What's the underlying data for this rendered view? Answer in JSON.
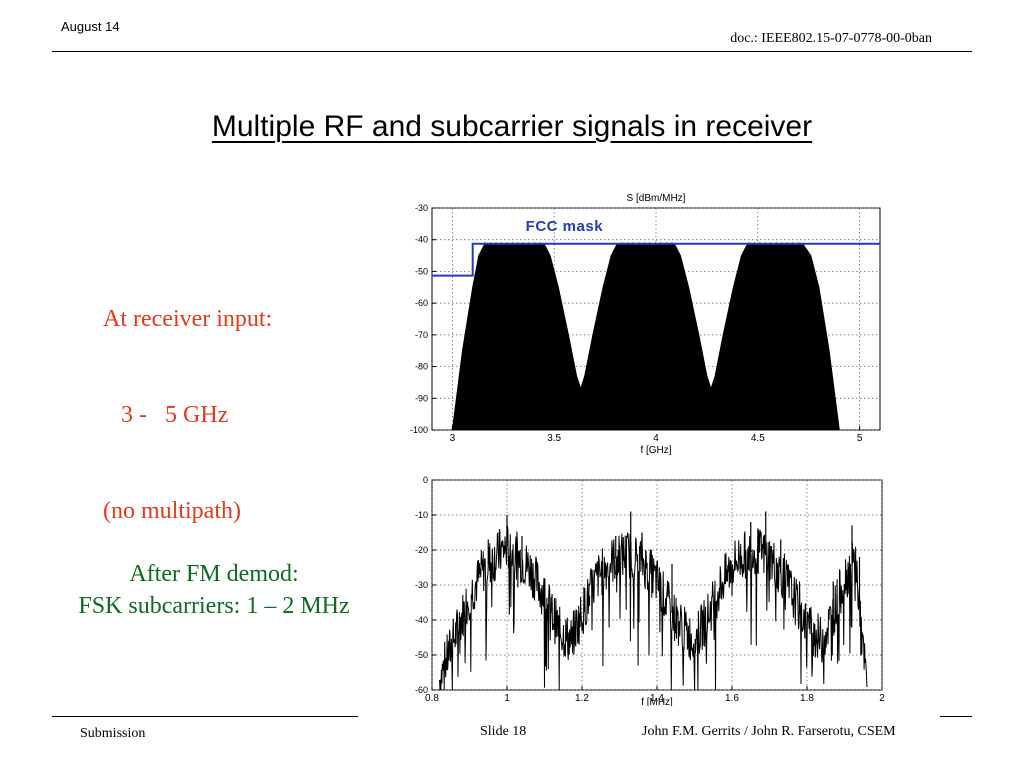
{
  "header": {
    "date": "August 14",
    "doc_id": "doc.: IEEE802.15-07-0778-00-0ban"
  },
  "title": "Multiple RF and subcarrier signals in receiver",
  "left_text": {
    "receiver_input_lines": [
      "At receiver input:",
      "   3 -   5 GHz",
      "(no multipath)"
    ],
    "demod_lines": [
      "After FM demod:",
      "FSK subcarriers: 1 – 2 MHz"
    ]
  },
  "footer": {
    "submission": "Submission",
    "slide": "Slide 18",
    "authors": "John F.M. Gerrits / John R. Farserotu, CSEM"
  },
  "chart_data": [
    {
      "type": "area",
      "title": "S [dBm/MHz]",
      "xlabel": "f [GHz]",
      "ylabel": "",
      "xlim": [
        2.9,
        5.1
      ],
      "ylim": [
        -100,
        -30
      ],
      "xticks": [
        3,
        3.5,
        4,
        4.5,
        5
      ],
      "yticks": [
        -30,
        -40,
        -50,
        -60,
        -70,
        -80,
        -90,
        -100
      ],
      "grid": true,
      "annotation": "FCC mask",
      "fcc_mask": {
        "color": "#1f3fb4",
        "points": [
          [
            2.9,
            -51.3
          ],
          [
            3.1,
            -51.3
          ],
          [
            3.1,
            -41.3
          ],
          [
            5.1,
            -41.3
          ]
        ]
      },
      "series": [
        {
          "color": "#000000",
          "envelope": [
            [
              3.0,
              -100
            ],
            [
              3.05,
              -75
            ],
            [
              3.1,
              -55
            ],
            [
              3.13,
              -45
            ],
            [
              3.16,
              -41.3
            ],
            [
              3.45,
              -41.3
            ],
            [
              3.48,
              -45
            ],
            [
              3.52,
              -55
            ],
            [
              3.57,
              -70
            ],
            [
              3.61,
              -83
            ],
            [
              3.63,
              -87
            ],
            [
              3.65,
              -83
            ],
            [
              3.69,
              -70
            ],
            [
              3.74,
              -55
            ],
            [
              3.78,
              -45
            ],
            [
              3.81,
              -41.3
            ],
            [
              4.09,
              -41.3
            ],
            [
              4.12,
              -45
            ],
            [
              4.16,
              -55
            ],
            [
              4.21,
              -70
            ],
            [
              4.25,
              -83
            ],
            [
              4.27,
              -87
            ],
            [
              4.29,
              -83
            ],
            [
              4.33,
              -70
            ],
            [
              4.38,
              -55
            ],
            [
              4.42,
              -45
            ],
            [
              4.45,
              -41.3
            ],
            [
              4.72,
              -41.3
            ],
            [
              4.76,
              -45
            ],
            [
              4.8,
              -55
            ],
            [
              4.85,
              -75
            ],
            [
              4.9,
              -100
            ]
          ]
        }
      ]
    },
    {
      "type": "line",
      "title": "",
      "xlabel": "f [MHz]",
      "ylabel": "",
      "xlim": [
        0.8,
        2
      ],
      "ylim": [
        -60,
        0
      ],
      "xticks": [
        0.8,
        1,
        1.2,
        1.4,
        1.6,
        1.8,
        2
      ],
      "yticks": [
        0,
        -10,
        -20,
        -30,
        -40,
        -50,
        -60
      ],
      "grid": true,
      "series": [
        {
          "color": "#000000",
          "envelope": [
            [
              0.82,
              -57
            ],
            [
              0.86,
              -45
            ],
            [
              0.9,
              -33
            ],
            [
              0.94,
              -25
            ],
            [
              0.98,
              -21
            ],
            [
              1.0,
              -19
            ],
            [
              1.02,
              -21
            ],
            [
              1.06,
              -25
            ],
            [
              1.1,
              -33
            ],
            [
              1.14,
              -43
            ],
            [
              1.17,
              -46
            ],
            [
              1.2,
              -38
            ],
            [
              1.24,
              -28
            ],
            [
              1.28,
              -23
            ],
            [
              1.32,
              -21
            ],
            [
              1.36,
              -23
            ],
            [
              1.4,
              -29
            ],
            [
              1.44,
              -38
            ],
            [
              1.48,
              -44
            ],
            [
              1.5,
              -46
            ],
            [
              1.53,
              -40
            ],
            [
              1.57,
              -30
            ],
            [
              1.61,
              -23
            ],
            [
              1.66,
              -20
            ],
            [
              1.7,
              -22
            ],
            [
              1.74,
              -28
            ],
            [
              1.78,
              -37
            ],
            [
              1.82,
              -44
            ],
            [
              1.84,
              -46
            ],
            [
              1.87,
              -38
            ],
            [
              1.9,
              -28
            ],
            [
              1.93,
              -23
            ],
            [
              1.95,
              -50
            ],
            [
              1.96,
              -58
            ]
          ],
          "spikes": [
            [
              0.88,
              -40
            ],
            [
              0.95,
              -17
            ],
            [
              0.98,
              -14
            ],
            [
              1.0,
              -10
            ],
            [
              1.04,
              -16
            ],
            [
              1.12,
              -35
            ],
            [
              1.22,
              -36
            ],
            [
              1.29,
              -16
            ],
            [
              1.33,
              -9
            ],
            [
              1.36,
              -15
            ],
            [
              1.44,
              -24
            ],
            [
              1.52,
              -38
            ],
            [
              1.6,
              -33
            ],
            [
              1.65,
              -12
            ],
            [
              1.69,
              -9
            ],
            [
              1.73,
              -17
            ],
            [
              1.78,
              -29
            ],
            [
              1.87,
              -29
            ],
            [
              1.92,
              -13
            ],
            [
              1.94,
              -22
            ]
          ]
        }
      ]
    }
  ]
}
